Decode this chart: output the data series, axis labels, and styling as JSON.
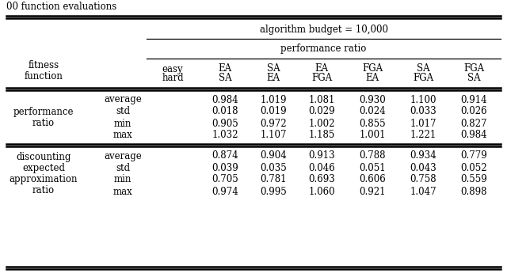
{
  "caption": "00 function evaluations",
  "header_top": "algorithm budget = 10,000",
  "header_mid": "performance ratio",
  "col_headers_line1": [
    "easy",
    "EA",
    "SA",
    "EA",
    "FGA",
    "SA",
    "FGA"
  ],
  "col_headers_line2": [
    "hard",
    "SA",
    "EA",
    "FGA",
    "EA",
    "FGA",
    "SA"
  ],
  "row_group1_label_lines": [
    "performance",
    "ratio"
  ],
  "row_group1_subrows": [
    "average",
    "std",
    "min",
    "max"
  ],
  "row_group1_data": [
    [
      0.984,
      1.019,
      1.081,
      0.93,
      1.1,
      0.914
    ],
    [
      0.018,
      0.019,
      0.029,
      0.024,
      0.033,
      0.026
    ],
    [
      0.905,
      0.972,
      1.002,
      0.855,
      1.017,
      0.827
    ],
    [
      1.032,
      1.107,
      1.185,
      1.001,
      1.221,
      0.984
    ]
  ],
  "row_group2_label_lines": [
    "discounting",
    "expected",
    "approximation",
    "ratio"
  ],
  "row_group2_subrows": [
    "average",
    "std",
    "min",
    "max"
  ],
  "row_group2_data": [
    [
      0.874,
      0.904,
      0.913,
      0.788,
      0.934,
      0.779
    ],
    [
      0.039,
      0.035,
      0.046,
      0.051,
      0.043,
      0.052
    ],
    [
      0.705,
      0.781,
      0.693,
      0.606,
      0.758,
      0.559
    ],
    [
      0.974,
      0.995,
      1.06,
      0.921,
      1.047,
      0.898
    ]
  ],
  "bg_color": "#ffffff",
  "text_color": "#000000",
  "font_size": 8.5
}
